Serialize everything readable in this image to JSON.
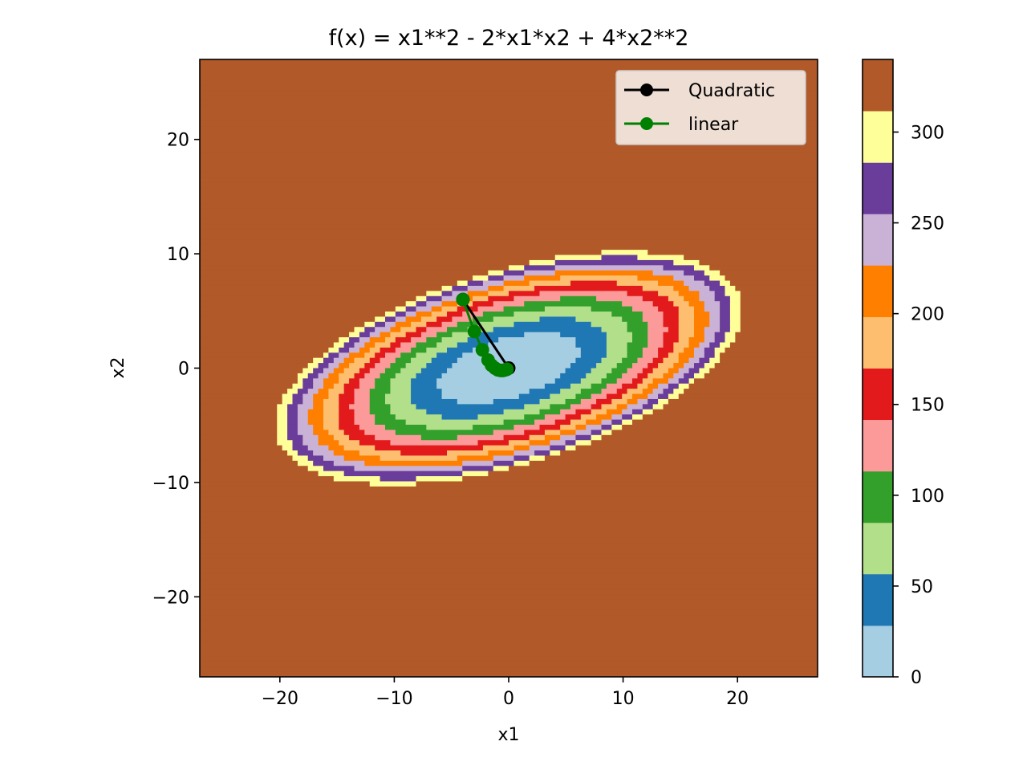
{
  "chart_data": {
    "type": "heatmap",
    "title": "f(x) = x1**2 - 2*x1*x2 + 4*x2**2",
    "xlabel": "x1",
    "ylabel": "x2",
    "function": "x1**2 - 2*x1*x2 + 4*x2**2",
    "xlim": [
      -27,
      27
    ],
    "ylim": [
      -27,
      27
    ],
    "x_ticks": [
      -20,
      -10,
      0,
      10,
      20
    ],
    "y_ticks": [
      -20,
      -10,
      0,
      10,
      20
    ],
    "x_tick_labels": [
      "−20",
      "−10",
      "0",
      "10",
      "20"
    ],
    "y_tick_labels": [
      "−20",
      "−10",
      "0",
      "10",
      "20"
    ],
    "colorbar": {
      "range": [
        0,
        340
      ],
      "ticks": [
        0,
        50,
        100,
        150,
        200,
        250,
        300
      ],
      "tick_labels": [
        "0",
        "50",
        "100",
        "150",
        "200",
        "250",
        "300"
      ],
      "bin_edges": [
        0,
        28.3,
        56.7,
        85,
        113.3,
        141.7,
        170,
        198.3,
        226.7,
        255,
        283.3,
        311.7,
        340
      ],
      "colors": [
        "#a6cee3",
        "#1f78b4",
        "#b2df8a",
        "#33a02c",
        "#fb9a99",
        "#e31a1c",
        "#fdbf6f",
        "#ff7f00",
        "#cab2d6",
        "#6a3d9a",
        "#ffff99",
        "#b15928"
      ]
    },
    "legend": {
      "placement": "upper right"
    },
    "series": [
      {
        "name": "Quadratic",
        "color": "#000000",
        "marker": "o",
        "x": [
          -4,
          0
        ],
        "y": [
          6,
          0
        ]
      },
      {
        "name": "linear",
        "color": "#008000",
        "marker": "o",
        "x": [
          -4,
          -3.0,
          -2.3,
          -1.8,
          -1.5,
          -1.2,
          -0.95,
          -0.7,
          -0.5,
          -0.3,
          -0.15
        ],
        "y": [
          6,
          3.2,
          1.6,
          0.7,
          0.25,
          0.0,
          -0.15,
          -0.2,
          -0.2,
          -0.15,
          -0.1
        ]
      }
    ],
    "grid": false
  }
}
